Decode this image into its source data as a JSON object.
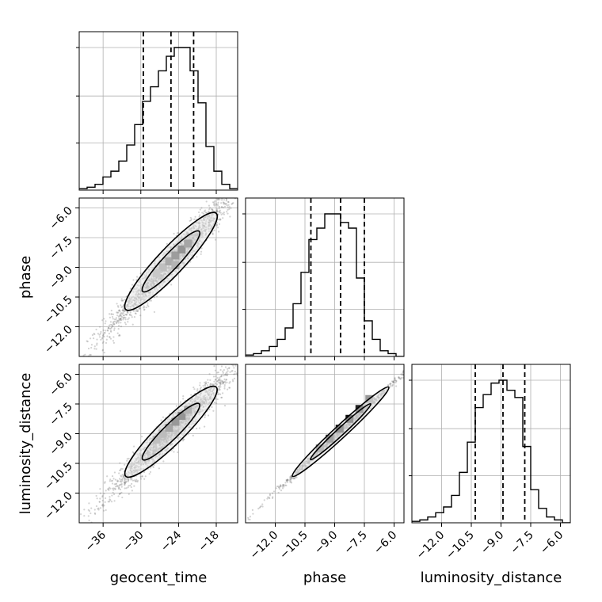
{
  "chart_data": {
    "type": "corner",
    "parameters": [
      "geocent_time",
      "phase",
      "luminosity_distance"
    ],
    "axis_ranges": {
      "geocent_time": [
        -39.8,
        -14.6
      ],
      "phase": [
        -13.5,
        -5.5
      ],
      "luminosity_distance": [
        -13.5,
        -5.5
      ]
    },
    "ticks": {
      "geocent_time": [
        "−36",
        "−30",
        "−24",
        "−18"
      ],
      "phase": [
        "−12.0",
        "−10.5",
        "−9.0",
        "−7.5",
        "−6.0"
      ],
      "luminosity_distance": [
        "−12.0",
        "−10.5",
        "−9.0",
        "−7.5",
        "−6.0"
      ]
    },
    "grid": true,
    "colors": {
      "line": "#000000",
      "grid": "#b0b0b0",
      "samples": "#808080"
    },
    "marginals": {
      "geocent_time": {
        "bin_edges": [
          -39.8,
          -38.54,
          -37.28,
          -36.02,
          -34.76,
          -33.5,
          -32.24,
          -30.98,
          -29.72,
          -28.46,
          -27.2,
          -25.94,
          -24.68,
          -23.42,
          -22.16,
          -20.9,
          -19.64,
          -18.38,
          -17.12,
          -15.86,
          -14.6
        ],
        "counts": [
          0.01,
          0.02,
          0.04,
          0.09,
          0.13,
          0.2,
          0.31,
          0.45,
          0.61,
          0.71,
          0.82,
          0.92,
          0.98,
          0.98,
          0.82,
          0.6,
          0.3,
          0.13,
          0.04,
          0.01
        ],
        "quantiles": [
          -29.6,
          -25.2,
          -21.6
        ]
      },
      "phase": {
        "bin_edges": [
          -13.5,
          -13.1,
          -12.7,
          -12.3,
          -11.9,
          -11.5,
          -11.1,
          -10.7,
          -10.3,
          -9.9,
          -9.5,
          -9.1,
          -8.7,
          -8.3,
          -7.9,
          -7.5,
          -7.1,
          -6.7,
          -6.3,
          -5.9,
          -5.5
        ],
        "counts": [
          0.01,
          0.02,
          0.04,
          0.07,
          0.12,
          0.2,
          0.37,
          0.59,
          0.82,
          0.9,
          1.0,
          1.0,
          0.94,
          0.9,
          0.55,
          0.25,
          0.12,
          0.04,
          0.02,
          0.0
        ],
        "quantiles": [
          -10.2,
          -8.7,
          -7.5
        ]
      },
      "luminosity_distance": {
        "bin_edges": [
          -13.5,
          -13.1,
          -12.7,
          -12.3,
          -11.9,
          -11.5,
          -11.1,
          -10.7,
          -10.3,
          -9.9,
          -9.5,
          -9.1,
          -8.7,
          -8.3,
          -7.9,
          -7.5,
          -7.1,
          -6.7,
          -6.3,
          -5.9,
          -5.5
        ],
        "counts": [
          0.01,
          0.02,
          0.04,
          0.07,
          0.11,
          0.19,
          0.35,
          0.56,
          0.8,
          0.89,
          0.97,
          0.99,
          0.92,
          0.87,
          0.53,
          0.23,
          0.1,
          0.04,
          0.02,
          0.0
        ],
        "quantiles": [
          -10.3,
          -8.9,
          -7.8
        ]
      }
    },
    "joint": [
      {
        "x": "geocent_time",
        "y": "phase",
        "slope": 0.28,
        "samples_n": 1800,
        "dense_cells": [
          {
            "x": -26.5,
            "y": -9.0,
            "w": 0.45
          },
          {
            "x": -25.5,
            "y": -8.7,
            "w": 0.7
          },
          {
            "x": -24.5,
            "y": -8.4,
            "w": 0.85
          },
          {
            "x": -23.5,
            "y": -8.1,
            "w": 0.95
          },
          {
            "x": -22.5,
            "y": -7.8,
            "w": 0.75
          },
          {
            "x": -27.5,
            "y": -9.3,
            "w": 0.35
          },
          {
            "x": -24.5,
            "y": -8.9,
            "w": 0.6
          }
        ]
      },
      {
        "x": "geocent_time",
        "y": "luminosity_distance",
        "slope": 0.28,
        "samples_n": 1800,
        "dense_cells": [
          {
            "x": -26.5,
            "y": -9.0,
            "w": 0.5
          },
          {
            "x": -25.5,
            "y": -8.7,
            "w": 0.75
          },
          {
            "x": -24.5,
            "y": -8.4,
            "w": 0.9
          },
          {
            "x": -23.5,
            "y": -8.1,
            "w": 0.95
          },
          {
            "x": -22.5,
            "y": -7.8,
            "w": 0.6
          },
          {
            "x": -27.5,
            "y": -9.3,
            "w": 0.45
          }
        ]
      },
      {
        "x": "phase",
        "y": "luminosity_distance",
        "slope": 1.0,
        "samples_n": 900,
        "dense_cells": [
          {
            "x": -9.75,
            "y": -9.75,
            "w": 0.55
          },
          {
            "x": -9.25,
            "y": -9.25,
            "w": 0.8
          },
          {
            "x": -8.75,
            "y": -8.75,
            "w": 0.95
          },
          {
            "x": -8.25,
            "y": -8.25,
            "w": 0.95
          },
          {
            "x": -7.75,
            "y": -7.75,
            "w": 0.85
          },
          {
            "x": -7.25,
            "y": -7.25,
            "w": 0.4
          }
        ]
      }
    ]
  }
}
